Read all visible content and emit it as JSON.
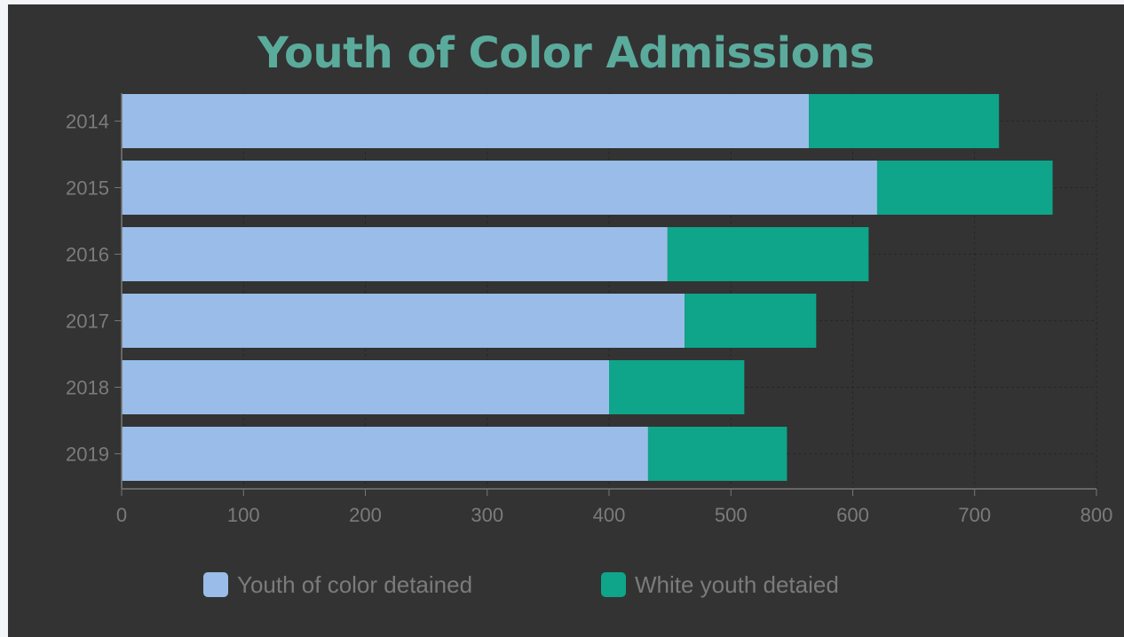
{
  "chart_data": {
    "type": "bar",
    "orientation": "horizontal",
    "stacked": true,
    "title": "Youth of Color Admissions",
    "xlabel": "",
    "ylabel": "",
    "categories": [
      "2014",
      "2015",
      "2016",
      "2017",
      "2018",
      "2019"
    ],
    "series": [
      {
        "name": "Youth of color detained",
        "color": "#99bde8",
        "values": [
          564,
          620,
          448,
          462,
          400,
          432
        ]
      },
      {
        "name": "White youth detaied",
        "color": "#0ea58a",
        "values": [
          156,
          144,
          165,
          108,
          111,
          114
        ]
      }
    ],
    "xlim": [
      0,
      800
    ],
    "xticks": [
      "0",
      "100",
      "200",
      "300",
      "400",
      "500",
      "600",
      "700",
      "800"
    ],
    "grid": true,
    "legend_position": "bottom"
  },
  "colors": {
    "background": "#333333",
    "title": "#5aab9c",
    "tick_text": "#7b7b7b",
    "axis_line": "#777777",
    "grid": "#4a4a4a"
  }
}
